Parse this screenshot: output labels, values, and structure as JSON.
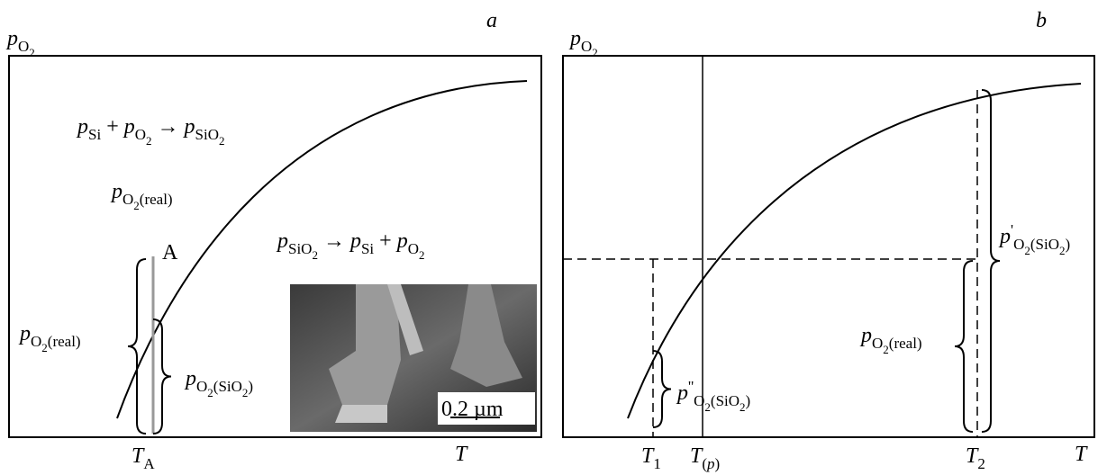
{
  "panels": [
    {
      "letter": "a",
      "y_axis": [
        {
          "text": "p",
          "style": "i"
        },
        {
          "text": "O",
          "style": "sub"
        },
        {
          "text": "2",
          "style": "sub2"
        }
      ],
      "x_axis": [
        {
          "text": "T",
          "style": "i"
        }
      ],
      "ticks": [
        [
          {
            "text": "T",
            "style": "i"
          },
          {
            "text": "A",
            "style": "sub"
          }
        ]
      ],
      "labels": [
        [
          {
            "text": "A",
            "style": "r"
          }
        ],
        [
          {
            "text": "p",
            "style": "i"
          },
          {
            "text": "Si",
            "style": "sub"
          },
          {
            "text": " + ",
            "style": "r"
          },
          {
            "text": "p",
            "style": "i"
          },
          {
            "text": "O",
            "style": "sub"
          },
          {
            "text": "2",
            "style": "sub2"
          },
          {
            "text": " → ",
            "style": "r"
          },
          {
            "text": "p",
            "style": "i"
          },
          {
            "text": "SiO",
            "style": "sub"
          },
          {
            "text": "2",
            "style": "sub2"
          }
        ],
        [
          {
            "text": "p",
            "style": "i"
          },
          {
            "text": "O",
            "style": "sub"
          },
          {
            "text": "2",
            "style": "sub2"
          },
          {
            "text": "(real)",
            "style": "sub"
          }
        ],
        [
          {
            "text": "p",
            "style": "i"
          },
          {
            "text": "SiO",
            "style": "sub"
          },
          {
            "text": "2",
            "style": "sub2"
          },
          {
            "text": " → ",
            "style": "r"
          },
          {
            "text": "p",
            "style": "i"
          },
          {
            "text": "Si",
            "style": "sub"
          },
          {
            "text": " + ",
            "style": "r"
          },
          {
            "text": "p",
            "style": "i"
          },
          {
            "text": "O",
            "style": "sub"
          },
          {
            "text": "2",
            "style": "sub2"
          }
        ],
        [
          {
            "text": "p",
            "style": "i"
          },
          {
            "text": "O",
            "style": "sub"
          },
          {
            "text": "2",
            "style": "sub2"
          },
          {
            "text": "(real)",
            "style": "sub"
          }
        ],
        [
          {
            "text": "p",
            "style": "i"
          },
          {
            "text": "O",
            "style": "sub"
          },
          {
            "text": "2",
            "style": "sub2"
          },
          {
            "text": "(SiO",
            "style": "sub"
          },
          {
            "text": "2",
            "style": "sub2"
          },
          {
            "text": ")",
            "style": "sub"
          }
        ],
        [
          {
            "text": "0.2 µm",
            "style": "r"
          }
        ]
      ]
    },
    {
      "letter": "b",
      "y_axis": [
        {
          "text": "p",
          "style": "i"
        },
        {
          "text": "O",
          "style": "sub"
        },
        {
          "text": "2",
          "style": "sub2"
        }
      ],
      "x_axis": [
        {
          "text": "T",
          "style": "i"
        }
      ],
      "ticks": [
        [
          {
            "text": "T",
            "style": "i"
          },
          {
            "text": "1",
            "style": "sub"
          }
        ],
        [
          {
            "text": "T",
            "style": "i"
          },
          {
            "text": "(",
            "style": "sub"
          },
          {
            "text": "p",
            "style": "subi"
          },
          {
            "text": ")",
            "style": "sub"
          }
        ],
        [
          {
            "text": "T",
            "style": "i"
          },
          {
            "text": "2",
            "style": "sub"
          }
        ]
      ],
      "labels": [
        [
          {
            "text": "p",
            "style": "i"
          },
          {
            "text": "'",
            "style": "sup"
          },
          {
            "text": "O",
            "style": "sub"
          },
          {
            "text": "2",
            "style": "sub2"
          },
          {
            "text": "(SiO",
            "style": "sub"
          },
          {
            "text": "2",
            "style": "sub2"
          },
          {
            "text": ")",
            "style": "sub"
          }
        ],
        [
          {
            "text": "p",
            "style": "i"
          },
          {
            "text": "O",
            "style": "sub"
          },
          {
            "text": "2",
            "style": "sub2"
          },
          {
            "text": "(real)",
            "style": "sub"
          }
        ],
        [
          {
            "text": "p",
            "style": "i"
          },
          {
            "text": "''",
            "style": "sup"
          },
          {
            "text": "O",
            "style": "sub"
          },
          {
            "text": "2",
            "style": "sub2"
          },
          {
            "text": "(SiO",
            "style": "sub"
          },
          {
            "text": "2",
            "style": "sub2"
          },
          {
            "text": ")",
            "style": "sub"
          }
        ]
      ]
    }
  ]
}
